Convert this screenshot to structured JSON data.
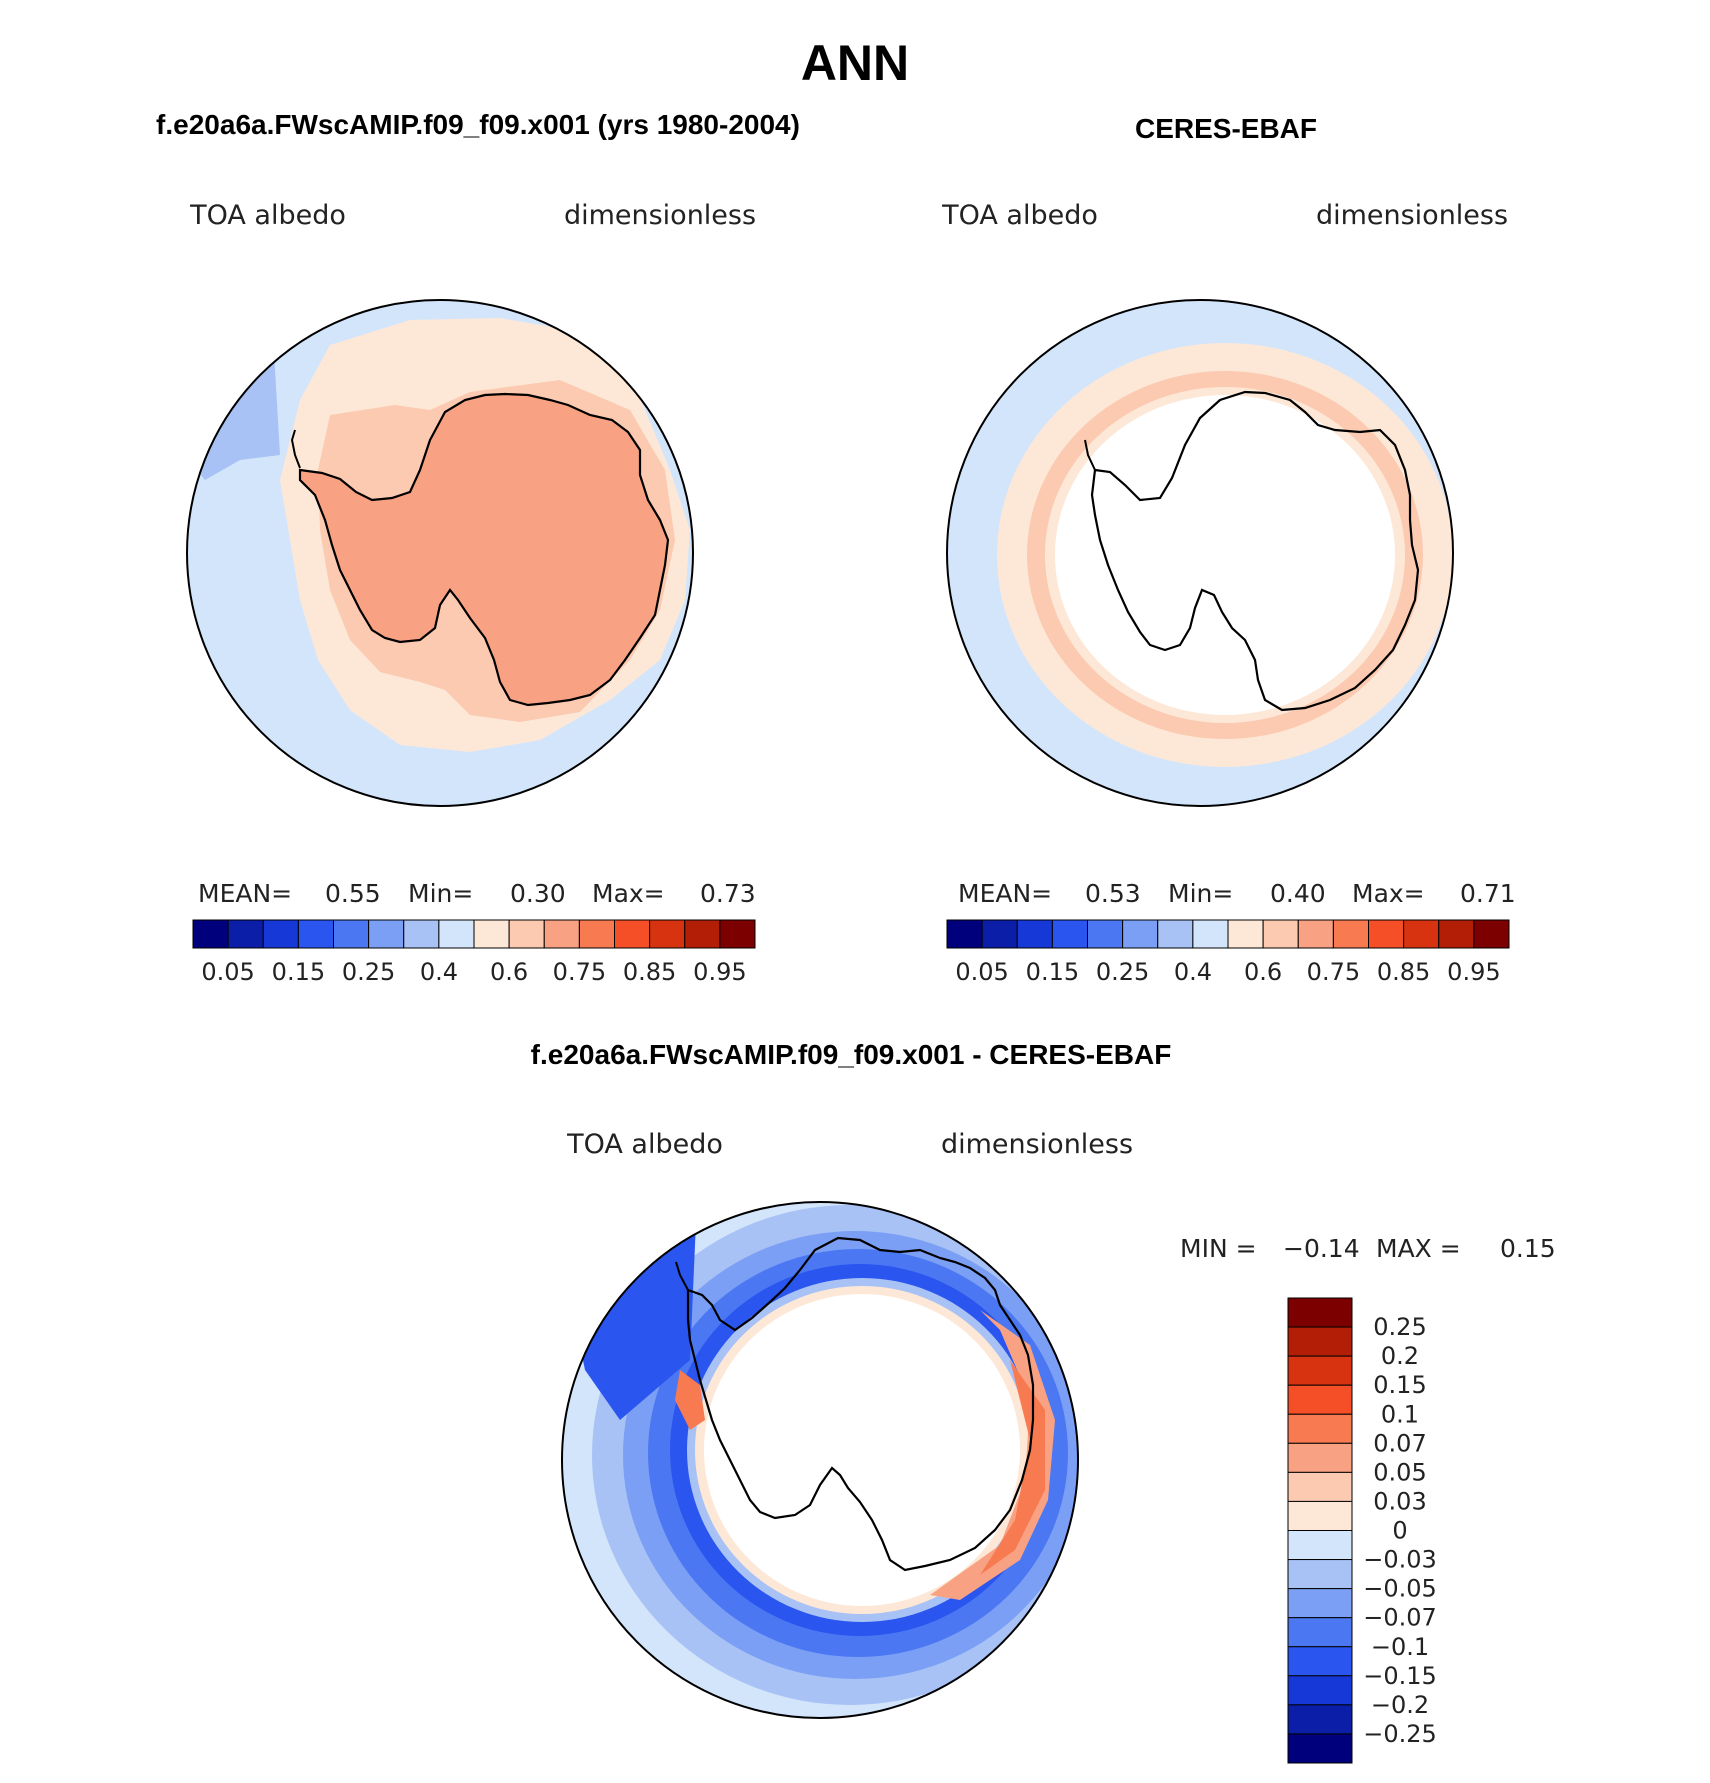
{
  "figure_title": "ANN",
  "colors": {
    "abs_scale": [
      "#00007d",
      "#0b1ea8",
      "#1638d6",
      "#2a55ef",
      "#4b78f2",
      "#7a9ff4",
      "#a8c2f6",
      "#d3e5fb",
      "#fde8d8",
      "#fbcab0",
      "#f8a283",
      "#f77a50",
      "#f44f26",
      "#d83311",
      "#b31f06",
      "#7d0000"
    ],
    "diff_scale": [
      "#7d0000",
      "#b31f06",
      "#d83311",
      "#f44f26",
      "#f77a50",
      "#f8a283",
      "#fbcab0",
      "#fde8d8",
      "#d3e5fb",
      "#a8c2f6",
      "#7a9ff4",
      "#4b78f2",
      "#2a55ef",
      "#1638d6",
      "#0b1ea8",
      "#00007d"
    ]
  },
  "chart_data": [
    {
      "type": "heatmap",
      "projection": "south-polar-stereographic",
      "panel_title": "f.e20a6a.FWscAMIP.f09_f09.x001 (yrs 1980-2004)",
      "variable": "TOA albedo",
      "units": "dimensionless",
      "stats": {
        "mean_label": "MEAN=",
        "mean": "0.55",
        "min_label": "Min=",
        "min": "0.30",
        "max_label": "Max=",
        "max": "0.73"
      },
      "colorbar_ticks": [
        "0.05",
        "0.15",
        "0.25",
        "0.4",
        "0.6",
        "0.75",
        "0.85",
        "0.95"
      ],
      "contour_levels": [
        0.05,
        0.1,
        0.15,
        0.2,
        0.25,
        0.3,
        0.35,
        0.4,
        0.5,
        0.6,
        0.7,
        0.75,
        0.8,
        0.85,
        0.9,
        0.95
      ],
      "field_summary": {
        "ocean_far": 0.45,
        "sea_ice_zone": 0.55,
        "antarctica": 0.67
      }
    },
    {
      "type": "heatmap",
      "projection": "south-polar-stereographic",
      "panel_title": "CERES-EBAF",
      "variable": "TOA albedo",
      "units": "dimensionless",
      "stats": {
        "mean_label": "MEAN=",
        "mean": "0.53",
        "min_label": "Min=",
        "min": "0.40",
        "max_label": "Max=",
        "max": "0.71"
      },
      "colorbar_ticks": [
        "0.05",
        "0.15",
        "0.25",
        "0.4",
        "0.6",
        "0.75",
        "0.85",
        "0.95"
      ],
      "contour_levels": [
        0.05,
        0.1,
        0.15,
        0.2,
        0.25,
        0.3,
        0.35,
        0.4,
        0.5,
        0.6,
        0.7,
        0.75,
        0.8,
        0.85,
        0.9,
        0.95
      ],
      "field_summary": {
        "ocean_far": 0.45,
        "sea_ice_zone": 0.55,
        "storm_track_ring": 0.62,
        "antarctica": "missing"
      }
    },
    {
      "type": "heatmap",
      "projection": "south-polar-stereographic",
      "panel_title": "f.e20a6a.FWscAMIP.f09_f09.x001 - CERES-EBAF",
      "variable": "TOA albedo",
      "units": "dimensionless",
      "stats": {
        "min_label": "MIN =",
        "min": "−0.14",
        "max_label": "MAX =",
        "max": "0.15"
      },
      "colorbar_ticks": [
        "0.25",
        "0.2",
        "0.15",
        "0.1",
        "0.07",
        "0.05",
        "0.03",
        "0",
        "−0.03",
        "−0.05",
        "−0.07",
        "−0.1",
        "−0.15",
        "−0.2",
        "−0.25"
      ],
      "field_summary": {
        "far_ocean": -0.03,
        "mid_ring": -0.07,
        "inner_ring": -0.1,
        "coastal_band": 0.05
      }
    }
  ]
}
